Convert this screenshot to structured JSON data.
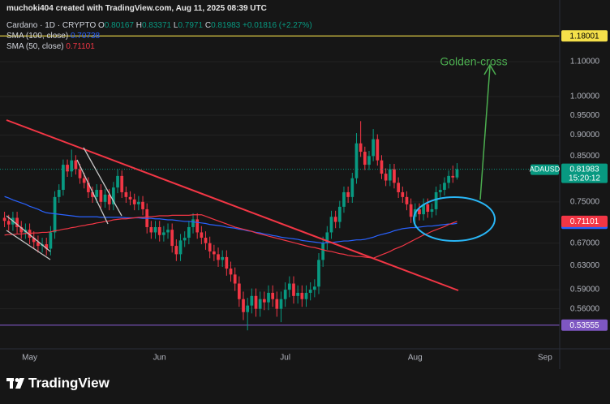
{
  "chart_data": {
    "type": "candlestick",
    "attribution": "muchoki404 created with TradingView.com, Aug 11, 2025 08:39 UTC",
    "title": "Cardano · 1D · CRYPTO",
    "ohlc_letters": [
      "O",
      "H",
      "L",
      "C"
    ],
    "change": {
      "value": 0.01816,
      "label": "+0.01816"
    },
    "change_pct": {
      "value": 2.27,
      "label": "(+2.27%)"
    },
    "symbol": "ADAUSD",
    "countdown": "15:20:12",
    "annotation": "Golden-cross",
    "logo": "TradingView",
    "up_color": "#089981",
    "down_color": "#f23645",
    "log_scale": true,
    "ylim": [
      0.502,
      1.218
    ],
    "yticks": [
      {
        "value": 1.1,
        "label": "1.10000"
      },
      {
        "value": 1.0,
        "label": "1.00000"
      },
      {
        "value": 0.95,
        "label": "0.95000"
      },
      {
        "value": 0.9,
        "label": "0.90000"
      },
      {
        "value": 0.85,
        "label": "0.85000"
      },
      {
        "value": 0.75,
        "label": "0.75000"
      },
      {
        "value": 0.67,
        "label": "0.67000"
      },
      {
        "value": 0.63,
        "label": "0.63000"
      },
      {
        "value": 0.59,
        "label": "0.59000"
      },
      {
        "value": 0.56,
        "label": "0.56000"
      }
    ],
    "grid": true,
    "price_lines": [
      {
        "value": 1.18001,
        "color": "#f5e04a",
        "text_color": "#000000"
      },
      {
        "value": 0.53555,
        "color": "#7e57c2",
        "text_color": "#ffffff"
      }
    ],
    "categories": [
      null,
      null,
      null,
      null,
      null,
      null,
      "May",
      null,
      null,
      null,
      null,
      null,
      null,
      null,
      null,
      null,
      null,
      null,
      null,
      null,
      null,
      null,
      null,
      null,
      null,
      null,
      null,
      null,
      null,
      null,
      null,
      null,
      null,
      null,
      null,
      null,
      null,
      "Jun",
      null,
      null,
      null,
      null,
      null,
      null,
      null,
      null,
      null,
      null,
      null,
      null,
      null,
      null,
      null,
      null,
      null,
      null,
      null,
      null,
      null,
      null,
      null,
      null,
      null,
      null,
      null,
      null,
      null,
      "Jul",
      null,
      null,
      null,
      null,
      null,
      null,
      null,
      null,
      null,
      null,
      null,
      null,
      null,
      null,
      null,
      null,
      null,
      null,
      null,
      null,
      null,
      null,
      null,
      null,
      null,
      null,
      null,
      null,
      null,
      null,
      "Aug",
      null,
      null,
      null,
      null,
      null,
      null,
      null,
      null,
      null,
      null,
      null,
      null,
      null,
      null,
      null,
      null,
      null,
      null,
      null,
      null,
      null,
      null,
      null,
      null,
      null,
      null,
      null,
      null,
      null,
      null,
      "Sep",
      null,
      null,
      null
    ],
    "open": [
      0.718,
      0.712,
      0.705,
      0.718,
      0.7,
      0.69,
      0.695,
      0.68,
      0.672,
      0.665,
      0.668,
      0.66,
      0.69,
      0.76,
      0.775,
      0.83,
      0.815,
      0.84,
      0.82,
      0.8,
      0.79,
      0.77,
      0.76,
      0.775,
      0.75,
      0.765,
      0.745,
      0.78,
      0.805,
      0.77,
      0.76,
      0.755,
      0.745,
      0.75,
      0.735,
      0.7,
      0.69,
      0.7,
      0.685,
      0.69,
      0.695,
      0.665,
      0.65,
      0.675,
      0.68,
      0.7,
      0.715,
      0.69,
      0.68,
      0.67,
      0.655,
      0.65,
      0.64,
      0.645,
      0.625,
      0.615,
      0.6,
      0.575,
      0.555,
      0.565,
      0.58,
      0.56,
      0.575,
      0.57,
      0.585,
      0.575,
      0.56,
      0.575,
      0.59,
      0.6,
      0.58,
      0.585,
      0.575,
      0.585,
      0.59,
      0.595,
      0.64,
      0.67,
      0.69,
      0.72,
      0.71,
      0.74,
      0.77,
      0.76,
      0.8,
      0.88,
      0.86,
      0.83,
      0.85,
      0.89,
      0.84,
      0.81,
      0.795,
      0.82,
      0.79,
      0.77,
      0.76,
      0.745,
      0.72,
      0.735,
      0.725,
      0.745,
      0.73,
      0.735,
      0.77,
      0.775,
      0.79,
      0.805,
      0.80167,
      null,
      null,
      null,
      null,
      null,
      null,
      null,
      null,
      null,
      null,
      null,
      null,
      null,
      null,
      null,
      null,
      null,
      null,
      null,
      null,
      null,
      null,
      null,
      null
    ],
    "high": [
      0.73,
      0.724,
      0.73,
      0.73,
      0.712,
      0.707,
      0.707,
      0.692,
      0.684,
      0.68,
      0.68,
      0.702,
      0.772,
      0.787,
      0.842,
      0.842,
      0.865,
      0.852,
      0.832,
      0.812,
      0.802,
      0.782,
      0.787,
      0.787,
      0.777,
      0.777,
      0.792,
      0.82,
      0.817,
      0.782,
      0.772,
      0.767,
      0.762,
      0.762,
      0.747,
      0.712,
      0.712,
      0.712,
      0.702,
      0.707,
      0.707,
      0.677,
      0.687,
      0.692,
      0.712,
      0.727,
      0.727,
      0.702,
      0.692,
      0.682,
      0.667,
      0.662,
      0.657,
      0.657,
      0.637,
      0.627,
      0.612,
      0.587,
      0.577,
      0.592,
      0.592,
      0.587,
      0.587,
      0.597,
      0.597,
      0.587,
      0.587,
      0.602,
      0.612,
      0.612,
      0.597,
      0.597,
      0.597,
      0.602,
      0.607,
      0.652,
      0.682,
      0.702,
      0.732,
      0.732,
      0.752,
      0.782,
      0.782,
      0.812,
      0.905,
      0.935,
      0.872,
      0.862,
      0.915,
      0.902,
      0.852,
      0.822,
      0.832,
      0.832,
      0.802,
      0.782,
      0.772,
      0.757,
      0.747,
      0.747,
      0.757,
      0.757,
      0.747,
      0.782,
      0.787,
      0.802,
      0.817,
      0.828,
      0.83371,
      null,
      null,
      null,
      null,
      null,
      null,
      null,
      null,
      null,
      null,
      null,
      null,
      null,
      null,
      null,
      null,
      null,
      null,
      null,
      null,
      null,
      null,
      null,
      null
    ],
    "low": [
      0.7,
      0.693,
      0.693,
      0.688,
      0.678,
      0.678,
      0.668,
      0.66,
      0.653,
      0.653,
      0.648,
      0.648,
      0.678,
      0.748,
      0.763,
      0.803,
      0.803,
      0.808,
      0.788,
      0.778,
      0.758,
      0.748,
      0.748,
      0.738,
      0.738,
      0.733,
      0.733,
      0.768,
      0.758,
      0.748,
      0.743,
      0.733,
      0.733,
      0.723,
      0.688,
      0.678,
      0.678,
      0.673,
      0.673,
      0.678,
      0.653,
      0.638,
      0.638,
      0.663,
      0.668,
      0.688,
      0.678,
      0.668,
      0.658,
      0.643,
      0.638,
      0.628,
      0.628,
      0.613,
      0.603,
      0.588,
      0.563,
      0.543,
      0.528,
      0.553,
      0.548,
      0.548,
      0.558,
      0.558,
      0.563,
      0.548,
      0.54,
      0.563,
      0.578,
      0.568,
      0.568,
      0.563,
      0.563,
      0.573,
      0.578,
      0.583,
      0.628,
      0.658,
      0.678,
      0.698,
      0.698,
      0.728,
      0.748,
      0.748,
      0.788,
      0.848,
      0.818,
      0.818,
      0.838,
      0.828,
      0.798,
      0.783,
      0.783,
      0.778,
      0.758,
      0.748,
      0.733,
      0.708,
      0.7,
      0.713,
      0.713,
      0.718,
      0.718,
      0.723,
      0.758,
      0.763,
      0.778,
      0.79,
      0.7971,
      null,
      null,
      null,
      null,
      null,
      null,
      null,
      null,
      null,
      null,
      null,
      null,
      null,
      null,
      null,
      null,
      null,
      null,
      null,
      null,
      null,
      null,
      null,
      null
    ],
    "close": [
      0.712,
      0.705,
      0.718,
      0.7,
      0.69,
      0.695,
      0.68,
      0.672,
      0.665,
      0.668,
      0.66,
      0.69,
      0.76,
      0.775,
      0.83,
      0.815,
      0.84,
      0.82,
      0.8,
      0.79,
      0.77,
      0.76,
      0.775,
      0.75,
      0.765,
      0.745,
      0.78,
      0.805,
      0.77,
      0.76,
      0.755,
      0.745,
      0.75,
      0.735,
      0.7,
      0.69,
      0.7,
      0.685,
      0.69,
      0.695,
      0.665,
      0.65,
      0.675,
      0.68,
      0.7,
      0.715,
      0.69,
      0.68,
      0.67,
      0.655,
      0.65,
      0.64,
      0.645,
      0.625,
      0.615,
      0.6,
      0.575,
      0.555,
      0.565,
      0.58,
      0.56,
      0.575,
      0.57,
      0.585,
      0.575,
      0.56,
      0.575,
      0.59,
      0.6,
      0.58,
      0.585,
      0.575,
      0.585,
      0.59,
      0.595,
      0.64,
      0.67,
      0.69,
      0.72,
      0.71,
      0.74,
      0.77,
      0.76,
      0.8,
      0.88,
      0.86,
      0.83,
      0.85,
      0.89,
      0.84,
      0.81,
      0.795,
      0.82,
      0.79,
      0.77,
      0.76,
      0.745,
      0.72,
      0.735,
      0.725,
      0.745,
      0.73,
      0.735,
      0.77,
      0.775,
      0.79,
      0.805,
      0.80167,
      0.81983,
      null,
      null,
      null,
      null,
      null,
      null,
      null,
      null,
      null,
      null,
      null,
      null,
      null,
      null,
      null,
      null,
      null,
      null,
      null,
      null,
      null,
      null,
      null,
      null
    ],
    "series": [
      {
        "name": "SMA (100, close)",
        "color": "#2962ff",
        "values": [
          0.761,
          0.758,
          0.754,
          0.751,
          0.748,
          0.745,
          0.741,
          0.738,
          0.735,
          0.731,
          0.728,
          0.727,
          0.726,
          0.725,
          0.724,
          0.723,
          0.722,
          0.721,
          0.72,
          0.72,
          0.72,
          0.72,
          0.72,
          0.719,
          0.719,
          0.719,
          0.719,
          0.719,
          0.719,
          0.718,
          0.718,
          0.718,
          0.718,
          0.717,
          0.717,
          0.717,
          0.716,
          0.716,
          0.715,
          0.714,
          0.714,
          0.713,
          0.712,
          0.711,
          0.711,
          0.71,
          0.709,
          0.708,
          0.707,
          0.705,
          0.704,
          0.703,
          0.702,
          0.7,
          0.699,
          0.698,
          0.696,
          0.695,
          0.693,
          0.692,
          0.69,
          0.689,
          0.687,
          0.686,
          0.684,
          0.683,
          0.681,
          0.68,
          0.679,
          0.678,
          0.677,
          0.675,
          0.674,
          0.673,
          0.672,
          0.671,
          0.67,
          0.671,
          0.671,
          0.672,
          0.673,
          0.674,
          0.674,
          0.675,
          0.676,
          0.676,
          0.677,
          0.679,
          0.681,
          0.684,
          0.686,
          0.688,
          0.69,
          0.693,
          0.695,
          0.697,
          0.698,
          0.699,
          0.699,
          0.7,
          0.701,
          0.702,
          0.702,
          0.703,
          0.704,
          0.705,
          0.706,
          0.706,
          0.70738,
          null,
          null,
          null,
          null,
          null,
          null,
          null,
          null,
          null,
          null,
          null,
          null,
          null,
          null,
          null,
          null,
          null,
          null,
          null,
          null,
          null,
          null,
          null,
          null
        ]
      },
      {
        "name": "SMA (50, close)",
        "color": "#f23645",
        "values": [
          0.685,
          0.686,
          0.686,
          0.687,
          0.687,
          0.688,
          0.688,
          0.689,
          0.689,
          0.69,
          0.69,
          0.691,
          0.693,
          0.694,
          0.696,
          0.697,
          0.699,
          0.7,
          0.702,
          0.703,
          0.705,
          0.706,
          0.708,
          0.709,
          0.711,
          0.712,
          0.714,
          0.715,
          0.716,
          0.716,
          0.717,
          0.718,
          0.719,
          0.719,
          0.72,
          0.72,
          0.721,
          0.722,
          0.722,
          0.722,
          0.723,
          0.723,
          0.723,
          0.723,
          0.723,
          0.724,
          0.724,
          0.724,
          0.721,
          0.718,
          0.715,
          0.712,
          0.709,
          0.706,
          0.703,
          0.7,
          0.698,
          0.696,
          0.694,
          0.692,
          0.689,
          0.687,
          0.685,
          0.683,
          0.681,
          0.679,
          0.677,
          0.675,
          0.673,
          0.671,
          0.669,
          0.667,
          0.665,
          0.663,
          0.662,
          0.66,
          0.658,
          0.656,
          0.655,
          0.653,
          0.651,
          0.65,
          0.648,
          0.647,
          0.646,
          0.646,
          0.645,
          0.644,
          0.643,
          0.646,
          0.649,
          0.652,
          0.655,
          0.659,
          0.662,
          0.665,
          0.669,
          0.673,
          0.677,
          0.681,
          0.685,
          0.688,
          0.692,
          0.695,
          0.698,
          0.701,
          0.705,
          0.708,
          0.71101,
          null,
          null,
          null,
          null,
          null,
          null,
          null,
          null,
          null,
          null,
          null,
          null,
          null,
          null,
          null,
          null,
          null,
          null,
          null,
          null,
          null,
          null,
          null,
          null
        ]
      }
    ]
  }
}
